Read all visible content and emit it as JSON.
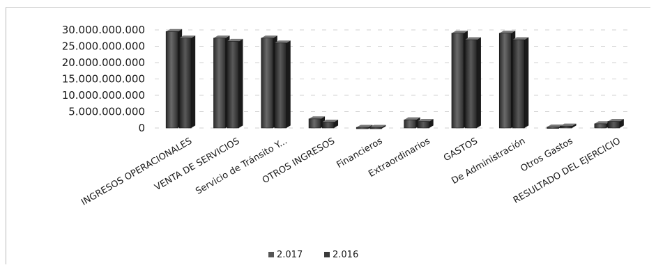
{
  "chart_data": {
    "type": "bar",
    "title": "",
    "xlabel": "",
    "ylabel": "",
    "categories": [
      "INGRESOS OPERACIONALES",
      "VENTA DE SERVICIOS",
      "Servicio de Tránsito Y...",
      "OTROS INGRESOS",
      "Financieros",
      "Extraordinarios",
      "GASTOS",
      "De Administración",
      "Otros Gastos",
      "RESULTADO DEL EJERCICIO"
    ],
    "series": [
      {
        "name": "2.017",
        "color": "#555555",
        "values": [
          29500000000,
          27500000000,
          27500000000,
          2800000000,
          200000000,
          2500000000,
          29000000000,
          29000000000,
          300000000,
          1300000000
        ]
      },
      {
        "name": "2.016",
        "color": "#3a3a3a",
        "values": [
          27500000000,
          26500000000,
          26000000000,
          1800000000,
          200000000,
          2000000000,
          27000000000,
          27000000000,
          600000000,
          2000000000
        ]
      }
    ],
    "ylim": [
      0,
      30000000000
    ],
    "yticks": [
      "0",
      "5.000.000.000",
      "10.000.000.000",
      "15.000.000.000",
      "20.000.000.000",
      "25.000.000.000",
      "30.000.000.000"
    ],
    "ytick_values": [
      0,
      5000000000,
      10000000000,
      15000000000,
      20000000000,
      25000000000,
      30000000000
    ],
    "grid": true,
    "legend": "bottom"
  }
}
